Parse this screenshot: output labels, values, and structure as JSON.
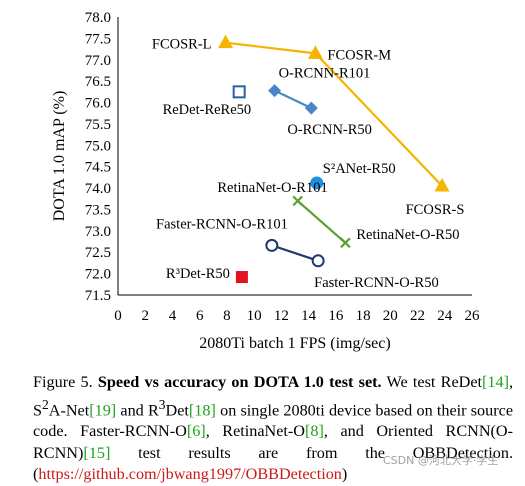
{
  "chart_data": {
    "type": "scatter",
    "xlabel": "2080Ti batch 1 FPS (img/sec)",
    "ylabel": "DOTA 1.0 mAP (%)",
    "xlim": [
      0,
      26
    ],
    "ylim": [
      71.5,
      78.0
    ],
    "x_ticks": [
      "0",
      "2",
      "4",
      "6",
      "8",
      "10",
      "12",
      "14",
      "16",
      "18",
      "20",
      "22",
      "24",
      "26"
    ],
    "y_ticks": [
      "71.5",
      "72.0",
      "72.5",
      "73.0",
      "73.5",
      "74.0",
      "74.5",
      "75.0",
      "75.5",
      "76.0",
      "76.5",
      "77.0",
      "77.5",
      "78.0"
    ],
    "grid": false,
    "series": [
      {
        "marker": "triangle",
        "color": "#f5b400",
        "line": true,
        "points": [
          {
            "label": "FCOSR-L",
            "x": 7.9,
            "y": 77.4
          },
          {
            "label": "FCOSR-M",
            "x": 14.5,
            "y": 77.15
          },
          {
            "label": "FCOSR-S",
            "x": 23.8,
            "y": 74.05
          }
        ]
      },
      {
        "marker": "diamond",
        "color": "#4a86c6",
        "line": true,
        "points": [
          {
            "label": "O-RCNN-R101",
            "x": 11.5,
            "y": 76.28
          },
          {
            "label": "O-RCNN-R50",
            "x": 14.2,
            "y": 75.87
          }
        ]
      },
      {
        "marker": "square-open",
        "color": "#2e5fa5",
        "line": false,
        "points": [
          {
            "label": "ReDet-ReRe50",
            "x": 8.9,
            "y": 76.25
          }
        ]
      },
      {
        "marker": "circle",
        "color": "#1e90e0",
        "line": false,
        "points": [
          {
            "label": "S²ANet-R50",
            "x": 14.6,
            "y": 74.12
          }
        ]
      },
      {
        "marker": "x",
        "color": "#5aa02c",
        "line": true,
        "points": [
          {
            "label": "RetinaNet-O-R101",
            "x": 13.2,
            "y": 73.7
          },
          {
            "label": "RetinaNet-O-R50",
            "x": 16.7,
            "y": 72.72
          }
        ]
      },
      {
        "marker": "circle-open",
        "color": "#1f3a6e",
        "line": true,
        "points": [
          {
            "label": "Faster-RCNN-O-R101",
            "x": 11.3,
            "y": 72.66
          },
          {
            "label": "Faster-RCNN-O-R50",
            "x": 14.7,
            "y": 72.3
          }
        ]
      },
      {
        "marker": "square",
        "color": "#e0141e",
        "line": false,
        "points": [
          {
            "label": "R³Det-R50",
            "x": 9.1,
            "y": 71.92
          }
        ]
      }
    ]
  },
  "caption": {
    "fig": "Figure 5.",
    "bold": "Speed vs accuracy on DOTA 1.0 test set.",
    "t1": "We test ReDet",
    "r1": "[14]",
    "t2": ", S",
    "t2sup": "2",
    "t3": "A-Net",
    "r2": "[19]",
    "t4": " and R",
    "t4sup": "3",
    "t5": "Det",
    "r3": "[18]",
    "t6": " on single 2080ti device based on their source code. Faster-RCNN-O",
    "r4": "[6]",
    "t7": ", RetinaNet-O",
    "r5": "[8]",
    "t8": ", and Oriented RCNN(O-RCNN)",
    "r6": "[15]",
    "t9": " test results are from the OBBDetection. (",
    "url": "https://github.com/jbwang1997/OBBDetection",
    "t10": ")"
  },
  "watermark": "CSDN @河北大学·学生"
}
